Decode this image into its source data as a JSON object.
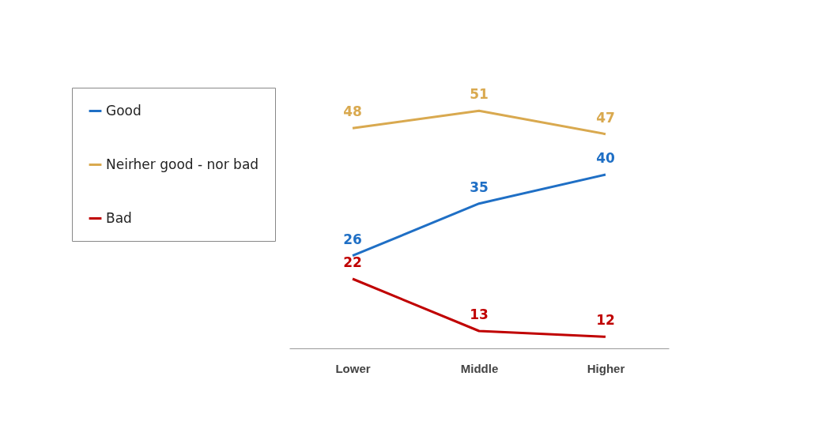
{
  "chart_data": {
    "type": "line",
    "categories": [
      "Lower",
      "Middle",
      "Higher"
    ],
    "series": [
      {
        "name": "Good",
        "color": "#1f6fc5",
        "values": [
          26,
          35,
          40
        ]
      },
      {
        "name": "Neirher good - nor bad",
        "color": "#d9a94f",
        "values": [
          48,
          51,
          47
        ]
      },
      {
        "name": "Bad",
        "color": "#c00000",
        "values": [
          22,
          13,
          12
        ]
      }
    ],
    "data_labels": true,
    "legend": "left",
    "grid": false,
    "marker": "none",
    "line_style": "solid",
    "tick_labels": "x"
  }
}
